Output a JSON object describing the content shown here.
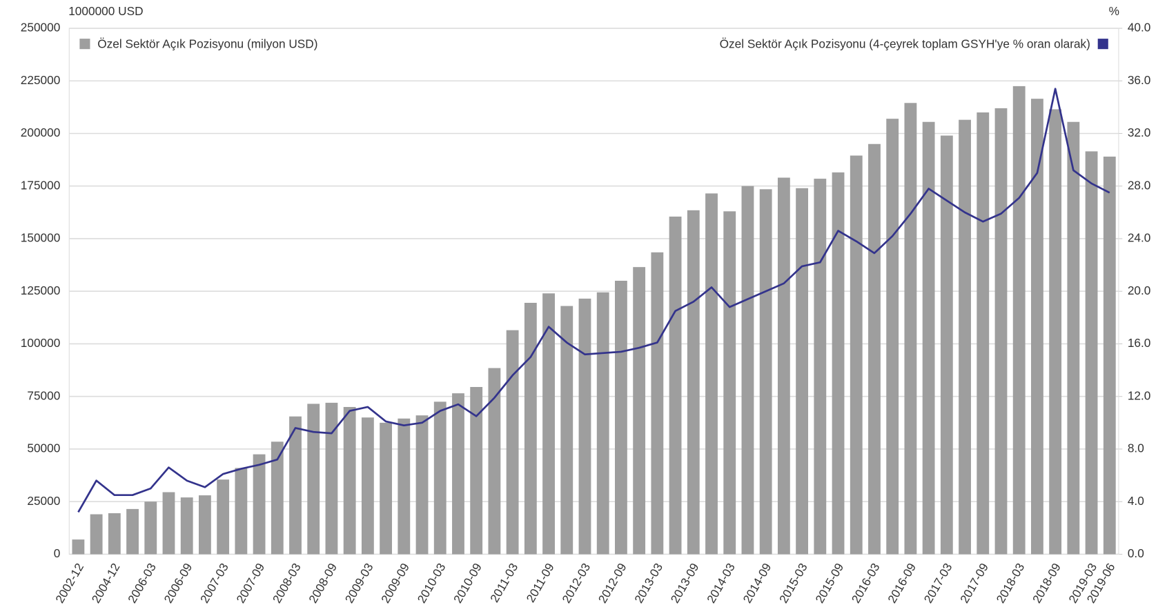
{
  "chart_data": {
    "type": "bar-line",
    "y_unit_label": "1000000 USD",
    "y2_unit_label": "%",
    "categories": [
      "2002-12",
      null,
      "2004-12",
      null,
      "2006-03",
      null,
      "2006-09",
      null,
      "2007-03",
      null,
      "2007-09",
      null,
      "2008-03",
      null,
      "2008-09",
      null,
      "2009-03",
      null,
      "2009-09",
      null,
      "2010-03",
      null,
      "2010-09",
      null,
      "2011-03",
      null,
      "2011-09",
      null,
      "2012-03",
      null,
      "2012-09",
      null,
      "2013-03",
      null,
      "2013-09",
      null,
      "2014-03",
      null,
      "2014-09",
      null,
      "2015-03",
      null,
      "2015-09",
      null,
      "2016-03",
      null,
      "2016-09",
      null,
      "2017-03",
      null,
      "2017-09",
      null,
      "2018-03",
      null,
      "2018-09",
      null,
      "2019-03",
      "2019-06"
    ],
    "series": [
      {
        "name": "Özel Sektör Açık Pozisyonu (milyon USD)",
        "color": "#9e9e9e",
        "kind": "bar",
        "values": [
          7000,
          19000,
          19500,
          21500,
          25000,
          29500,
          27000,
          28000,
          35500,
          41000,
          47500,
          53500,
          65500,
          71500,
          72000,
          70000,
          65000,
          62500,
          64500,
          66000,
          72500,
          76500,
          79500,
          88500,
          106500,
          119500,
          124000,
          118000,
          121500,
          124500,
          130000,
          136500,
          143500,
          160500,
          163500,
          171500,
          163000,
          175000,
          173500,
          179000,
          174000,
          178500,
          181500,
          189500,
          195000,
          207000,
          214500,
          205500,
          199000,
          206500,
          210000,
          212000,
          222500,
          216500,
          211500,
          205500,
          191500,
          189000
        ]
      },
      {
        "name": "Özel Sektör Açık Pozisyonu (4-çeyrek toplam GSYH'ye % oran olarak)",
        "color": "#33338c",
        "kind": "line",
        "axis": "y2",
        "values": [
          3.2,
          5.6,
          4.5,
          4.5,
          5.0,
          6.6,
          5.6,
          5.1,
          6.1,
          6.5,
          6.8,
          7.2,
          9.6,
          9.3,
          9.2,
          10.9,
          11.2,
          10.1,
          9.8,
          10.0,
          10.9,
          11.4,
          10.5,
          11.9,
          13.6,
          15.0,
          17.3,
          16.1,
          15.2,
          15.3,
          15.4,
          15.7,
          16.1,
          18.5,
          19.2,
          20.3,
          18.8,
          19.4,
          20.0,
          20.6,
          21.9,
          22.2,
          24.6,
          23.8,
          22.9,
          24.2,
          25.9,
          27.8,
          26.9,
          26.0,
          25.3,
          25.9,
          27.1,
          29.0,
          35.4,
          29.2,
          28.2,
          27.5
        ]
      }
    ],
    "ylim": [
      0,
      250000
    ],
    "yticks": [
      0,
      25000,
      50000,
      75000,
      100000,
      125000,
      150000,
      175000,
      200000,
      225000,
      250000
    ],
    "y2lim": [
      0,
      40
    ],
    "y2ticks": [
      {
        "value": 0,
        "label": "0.0"
      },
      {
        "value": 4,
        "label": "4.0"
      },
      {
        "value": 8,
        "label": "8.0"
      },
      {
        "value": 12,
        "label": "12.0"
      },
      {
        "value": 16,
        "label": "16.0"
      },
      {
        "value": 20,
        "label": "20.0"
      },
      {
        "value": 24,
        "label": "24.0"
      },
      {
        "value": 28,
        "label": "28.0"
      },
      {
        "value": 32,
        "label": "32.0"
      },
      {
        "value": 36,
        "label": "36.0"
      },
      {
        "value": 40,
        "label": "40.0"
      }
    ],
    "grid": true
  }
}
